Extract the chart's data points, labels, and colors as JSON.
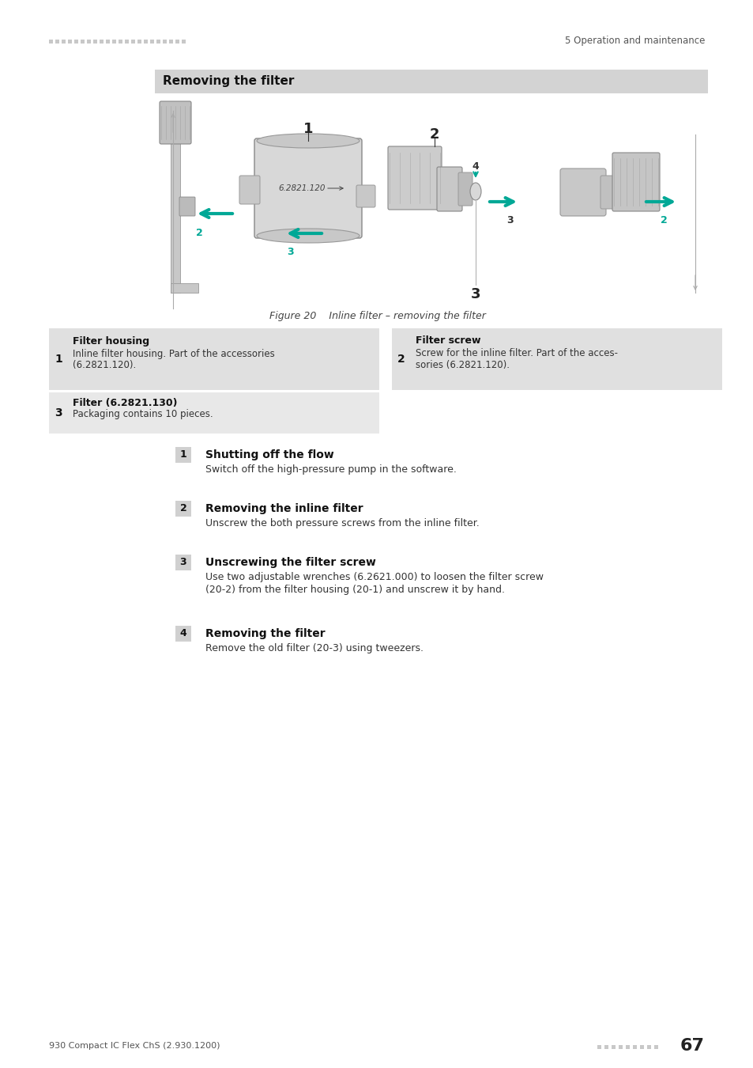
{
  "page_bg": "#ffffff",
  "header_dots_color": "#c8c8c8",
  "header_right_text": "5 Operation and maintenance",
  "footer_left_text": "930 Compact IC Flex ChS (2.930.1200)",
  "footer_dots_color": "#c8c8c8",
  "footer_page_number": "67",
  "section_header_bg": "#d3d3d3",
  "section_header_text": "Removing the filter",
  "figure_caption": "Figure 20    Inline filter – removing the filter",
  "teal_color": "#00a896",
  "parts_table": [
    {
      "num": "1",
      "title": "Filter housing",
      "desc": "Inline filter housing. Part of the accessories\n(6.2821.120)."
    },
    {
      "num": "2",
      "title": "Filter screw",
      "desc": "Screw for the inline filter. Part of the acces-\nsories (6.2821.120)."
    },
    {
      "num": "3",
      "title": "Filter (6.2821.130)",
      "desc": "Packaging contains 10 pieces."
    }
  ],
  "steps": [
    {
      "num": "1",
      "title": "Shutting off the flow",
      "desc": "Switch off the high-pressure pump in the software."
    },
    {
      "num": "2",
      "title": "Removing the inline filter",
      "desc": "Unscrew the both pressure screws from the inline filter."
    },
    {
      "num": "3",
      "title": "Unscrewing the filter screw",
      "desc": "Use two adjustable wrenches (6.2621.000) to loosen the filter screw\n(20-2) from the filter housing (20-1) and unscrew it by hand."
    },
    {
      "num": "4",
      "title": "Removing the filter",
      "desc": "Remove the old filter (20-3) using tweezers."
    }
  ]
}
